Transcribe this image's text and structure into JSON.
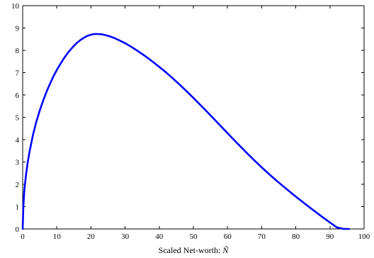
{
  "chart_data": {
    "type": "line",
    "title": "",
    "xlabel": "Scaled Net-worth: ",
    "xlabel_symbol": "Ñ",
    "ylabel": "",
    "xlim": [
      0,
      100
    ],
    "ylim": [
      0,
      10
    ],
    "xticks": [
      0,
      10,
      20,
      30,
      40,
      50,
      60,
      70,
      80,
      90,
      100
    ],
    "yticks": [
      0,
      1,
      2,
      3,
      4,
      5,
      6,
      7,
      8,
      9,
      10
    ],
    "grid": false,
    "box": true,
    "colors": {
      "series": "#0000ff",
      "axes": "#000000"
    },
    "series": [
      {
        "values_x": [
          0,
          0.2,
          0.5,
          1,
          1.5,
          2,
          3,
          4,
          5,
          6,
          7,
          8,
          9,
          10,
          11,
          12,
          13,
          14,
          15,
          16,
          17,
          18,
          19,
          20,
          21,
          22,
          23,
          24,
          25,
          26,
          27,
          28,
          30,
          32,
          34,
          36,
          38,
          40,
          42,
          44,
          46,
          48,
          50,
          52,
          54,
          56,
          58,
          60,
          62,
          64,
          66,
          68,
          70,
          72,
          74,
          76,
          78,
          80,
          82,
          84,
          86,
          88,
          90,
          92,
          94,
          95.6
        ],
        "values_y": [
          0,
          1.0,
          1.75,
          2.45,
          3.0,
          3.45,
          4.2,
          4.8,
          5.3,
          5.75,
          6.15,
          6.5,
          6.83,
          7.12,
          7.38,
          7.62,
          7.84,
          8.03,
          8.2,
          8.35,
          8.47,
          8.57,
          8.65,
          8.7,
          8.73,
          8.73,
          8.72,
          8.69,
          8.65,
          8.6,
          8.54,
          8.47,
          8.32,
          8.14,
          7.94,
          7.73,
          7.5,
          7.26,
          7.01,
          6.74,
          6.46,
          6.17,
          5.87,
          5.56,
          5.25,
          4.93,
          4.61,
          4.29,
          3.97,
          3.66,
          3.35,
          3.05,
          2.76,
          2.48,
          2.21,
          1.95,
          1.7,
          1.45,
          1.21,
          0.97,
          0.74,
          0.51,
          0.29,
          0.07,
          -0.15,
          0
        ]
      }
    ]
  }
}
